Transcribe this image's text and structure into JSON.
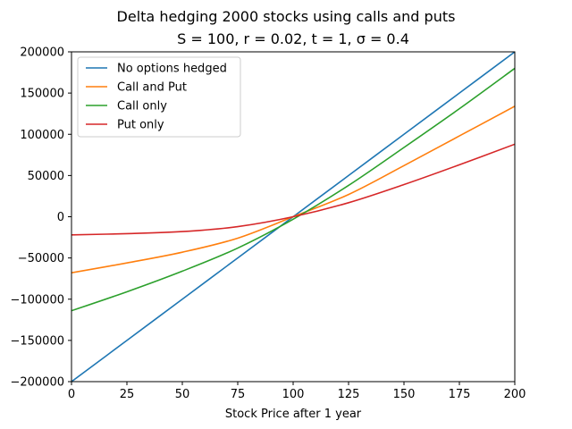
{
  "chart_data": {
    "type": "line",
    "title": "Delta hedging 2000 stocks using calls and puts",
    "subtitle": "S = 100, r = 0.02, t = 1, σ = 0.4",
    "xlabel": "Stock Price after 1 year",
    "ylabel": "",
    "xlim": [
      0,
      200
    ],
    "ylim": [
      -200000,
      200000
    ],
    "xticks": [
      0,
      25,
      50,
      75,
      100,
      125,
      150,
      175,
      200
    ],
    "yticks": [
      -200000,
      -150000,
      -100000,
      -50000,
      0,
      50000,
      100000,
      150000,
      200000
    ],
    "ytick_labels": [
      "−200000",
      "−150000",
      "−100000",
      "−50000",
      "0",
      "50000",
      "100000",
      "150000",
      "200000"
    ],
    "grid": false,
    "legend_position": "top-left",
    "x": [
      0,
      25,
      50,
      75,
      100,
      125,
      150,
      175,
      200
    ],
    "series": [
      {
        "name": "No options hedged",
        "color": "#1f77b4",
        "values": [
          -200000,
          -150000,
          -100000,
          -50000,
          0,
          50000,
          100000,
          150000,
          200000
        ]
      },
      {
        "name": "Call and Put",
        "color": "#ff7f0e",
        "values": [
          -68000,
          -56000,
          -43000,
          -26000,
          0,
          27000,
          62000,
          98000,
          134000
        ]
      },
      {
        "name": "Call only",
        "color": "#2ca02c",
        "values": [
          -114000,
          -91000,
          -66000,
          -38000,
          -3000,
          38000,
          84000,
          131000,
          180000
        ]
      },
      {
        "name": "Put only",
        "color": "#d62728",
        "values": [
          -22000,
          -20500,
          -18000,
          -12000,
          0,
          17000,
          39000,
          63000,
          88000
        ]
      }
    ]
  }
}
